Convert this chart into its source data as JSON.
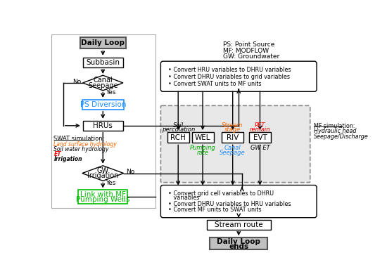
{
  "bg": "#ffffff",
  "legend_lines": [
    "PS: Point Source",
    "MF: MODFLOW",
    "GW: Groundwater"
  ],
  "mf_sim_lines": [
    "MF simulation:",
    "Hydraulic head",
    "Seepage/Discharge"
  ],
  "swat_label": "SWAT simulation:",
  "swat_lines": [
    "Land surface hydrology",
    "Soil water hydrology",
    "ET",
    "Irrigation"
  ],
  "swat_colors": [
    "#FF6600",
    "#000000",
    "#FF0000",
    "#000000"
  ],
  "conv1_lines": [
    "• Convert HRU variables to DHRU variables",
    "• Convert DHRU variables to grid variables",
    "• Convert SWAT units to MF units"
  ],
  "conv2_lines": [
    "• Convert grid cell variables to DHRU",
    "   variables",
    "• Convert DHRU variables to HRU variables",
    "• Convert MF units to SWAT units"
  ],
  "pkg_names": [
    "RCH",
    "WEL",
    "RIV",
    "EVT"
  ],
  "above_labels": [
    "Soil\npercolation",
    "",
    "Stream\nstage",
    "PET\nremain"
  ],
  "above_colors": [
    "#000000",
    "#000000",
    "#FF6600",
    "#FF0000"
  ],
  "below_labels": [
    "",
    "Pumping\nrate",
    "Canal\nSeepage",
    "GW ET"
  ],
  "below_colors": [
    "#000000",
    "#00AA00",
    "#1E90FF",
    "#000000"
  ]
}
